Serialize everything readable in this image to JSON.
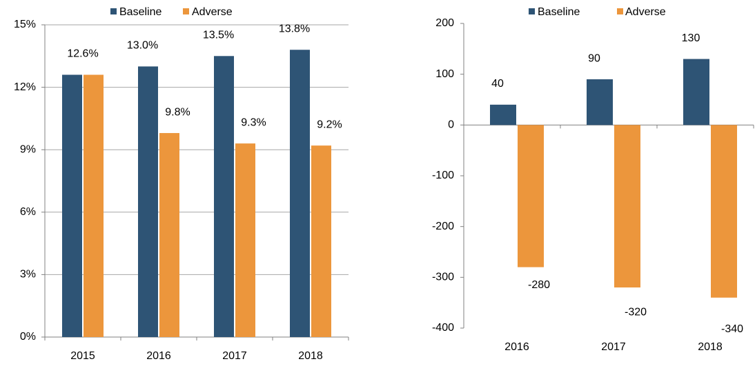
{
  "chart_data": [
    {
      "type": "bar",
      "categories": [
        "2015",
        "2016",
        "2017",
        "2018"
      ],
      "series": [
        {
          "name": "Baseline",
          "color": "#2e5475",
          "values": [
            12.6,
            13.0,
            13.5,
            13.8
          ],
          "value_labels": [
            "12.6%",
            "13.0%",
            "13.5%",
            "13.8%"
          ]
        },
        {
          "name": "Adverse",
          "color": "#ec963c",
          "values": [
            12.6,
            9.8,
            9.3,
            9.2
          ],
          "value_labels": [
            null,
            "9.8%",
            "9.3%",
            "9.2%"
          ]
        }
      ],
      "ylim": [
        0,
        15
      ],
      "yticks": [
        {
          "value": 0,
          "label": "0%"
        },
        {
          "value": 3,
          "label": "3%"
        },
        {
          "value": 6,
          "label": "6%"
        },
        {
          "value": 9,
          "label": "9%"
        },
        {
          "value": 12,
          "label": "12%"
        },
        {
          "value": 15,
          "label": "15%"
        }
      ],
      "grid": true,
      "legend": "top"
    },
    {
      "type": "bar",
      "categories": [
        "2016",
        "2017",
        "2018"
      ],
      "series": [
        {
          "name": "Baseline",
          "color": "#2e5475",
          "values": [
            40,
            90,
            130
          ]
        },
        {
          "name": "Adverse",
          "color": "#ec963c",
          "values": [
            -280,
            -320,
            -340
          ]
        }
      ],
      "ylim": [
        -400,
        200
      ],
      "yticks": [
        -400,
        -300,
        -200,
        -100,
        0,
        100,
        200
      ],
      "grid": false,
      "legend": "top"
    }
  ]
}
